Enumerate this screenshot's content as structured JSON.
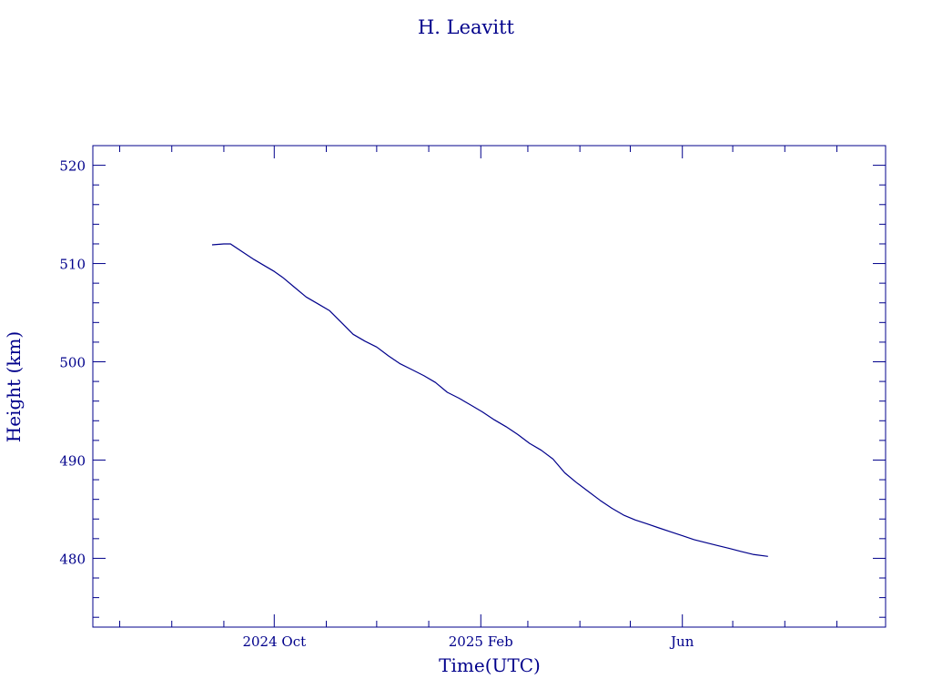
{
  "chart_data": {
    "type": "line",
    "title": "H. Leavitt",
    "xlabel": "Time(UTC)",
    "ylabel": "Height (km)",
    "color": "#00008b",
    "grid": false,
    "ylim": [
      473,
      522
    ],
    "xlim": [
      "2024-06-15",
      "2025-09-30"
    ],
    "x_tick_labels": [
      {
        "label": "2024 Oct",
        "date": "2024-10-01"
      },
      {
        "label": "2025 Feb",
        "date": "2025-02-01"
      },
      {
        "label": "Jun",
        "date": "2025-06-01"
      }
    ],
    "y_tick_labels": [
      "480",
      "490",
      "500",
      "510",
      "520"
    ],
    "series": [
      {
        "x": [
          "2024-08-25",
          "2024-09-01",
          "2024-09-05",
          "2024-09-12",
          "2024-09-19",
          "2024-09-26",
          "2024-10-01",
          "2024-10-06",
          "2024-10-13",
          "2024-10-20",
          "2024-10-27",
          "2024-11-03",
          "2024-11-10",
          "2024-11-17",
          "2024-11-24",
          "2024-12-01",
          "2024-12-08",
          "2024-12-15",
          "2024-12-22",
          "2024-12-29",
          "2025-01-05",
          "2025-01-12",
          "2025-01-19",
          "2025-01-26",
          "2025-02-02",
          "2025-02-09",
          "2025-02-16",
          "2025-02-23",
          "2025-03-02",
          "2025-03-09",
          "2025-03-16",
          "2025-03-23",
          "2025-03-30",
          "2025-04-06",
          "2025-04-13",
          "2025-04-20",
          "2025-04-27",
          "2025-05-04",
          "2025-05-11",
          "2025-05-18",
          "2025-05-25",
          "2025-06-01",
          "2025-06-08",
          "2025-06-15",
          "2025-06-22",
          "2025-06-29",
          "2025-07-06",
          "2025-07-13",
          "2025-07-22"
        ],
        "y": [
          511.9,
          512.0,
          512.0,
          511.2,
          510.4,
          509.7,
          509.2,
          508.6,
          507.6,
          506.6,
          505.9,
          505.2,
          504.0,
          502.8,
          502.1,
          501.5,
          500.6,
          499.8,
          499.2,
          498.6,
          497.9,
          496.9,
          496.3,
          495.6,
          494.9,
          494.1,
          493.4,
          492.6,
          491.7,
          491.0,
          490.1,
          488.7,
          487.7,
          486.8,
          485.9,
          485.1,
          484.4,
          483.9,
          483.5,
          483.1,
          482.7,
          482.3,
          481.9,
          481.6,
          481.3,
          481.0,
          480.7,
          480.4,
          480.2
        ]
      }
    ]
  }
}
